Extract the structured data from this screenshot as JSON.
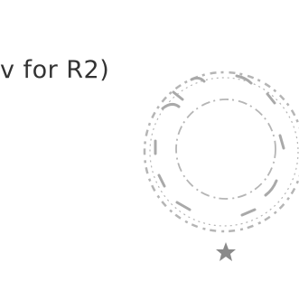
{
  "document": {
    "text": "v for R2)"
  }
}
